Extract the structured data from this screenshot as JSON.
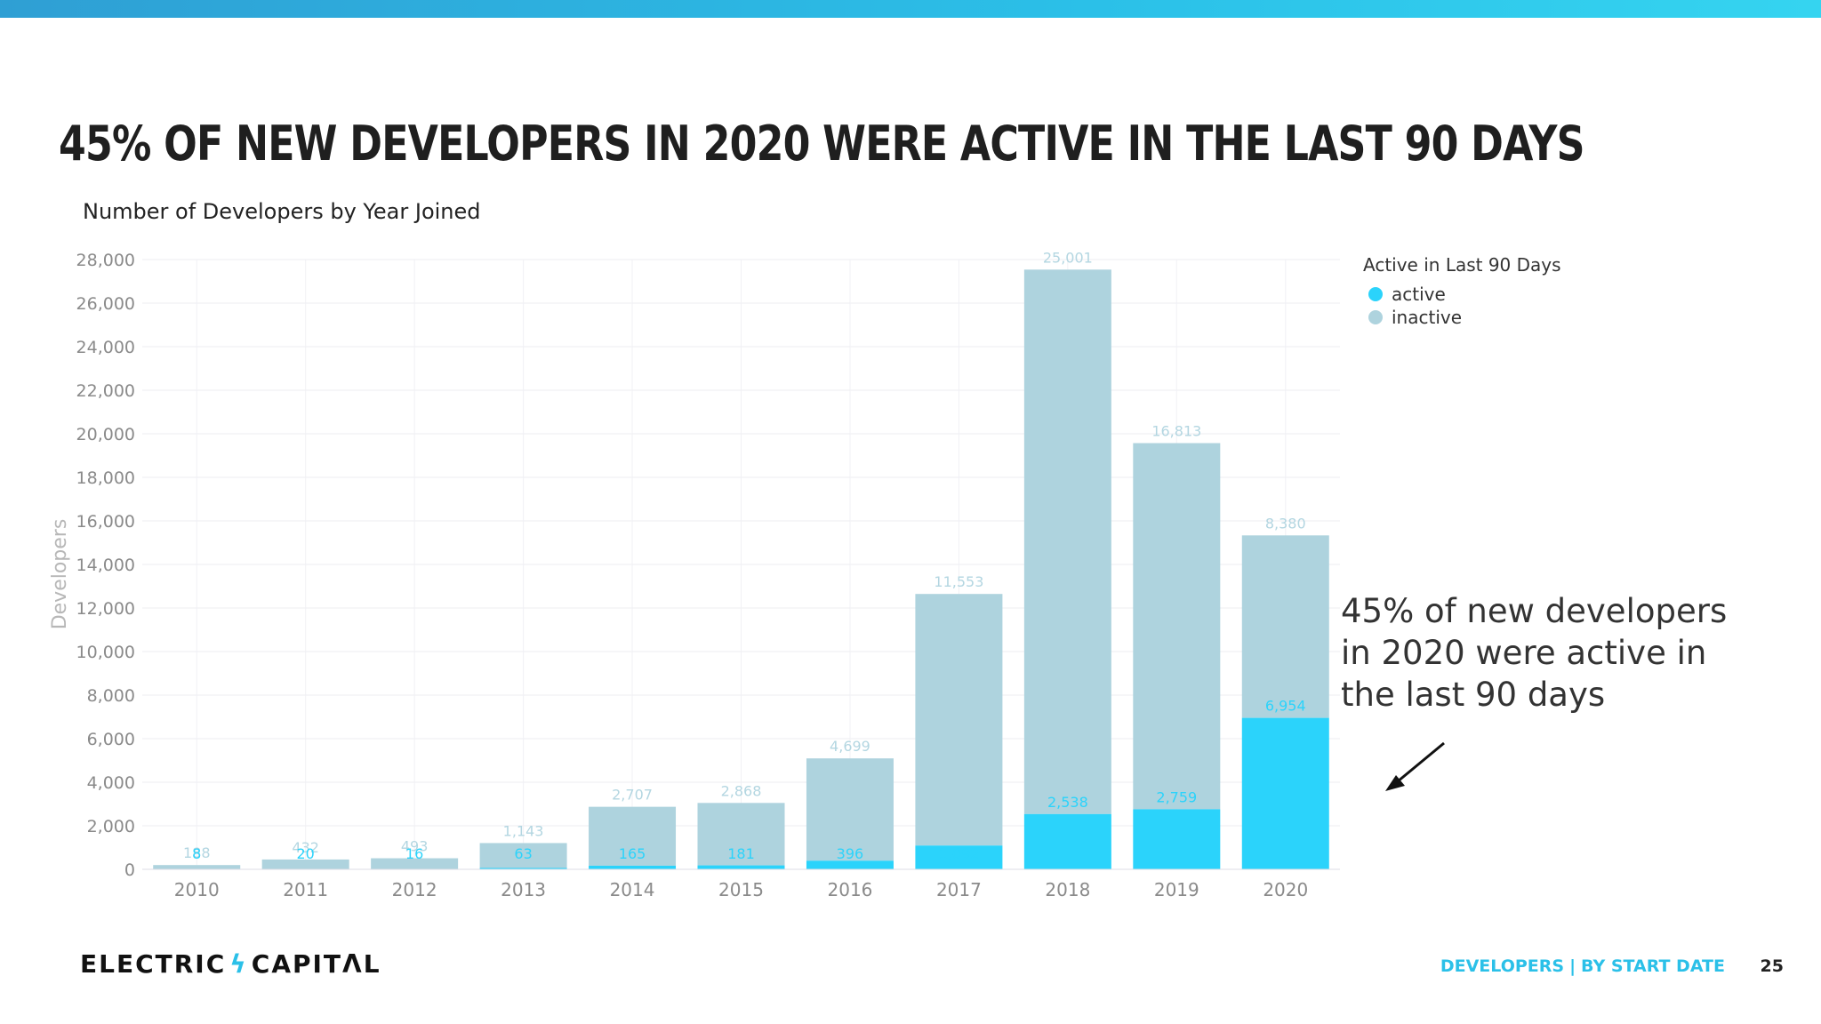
{
  "headline": "45% OF NEW DEVELOPERS IN 2020 WERE ACTIVE IN THE LAST 90 DAYS",
  "callout_text": "45% of new developers in 2020 were active in the last 90 days",
  "footer": {
    "logo_left": "ELECTRIC",
    "logo_bolt": "ϟ",
    "logo_right": "CAPITΛL",
    "nav_section": "DEVELOPERS",
    "nav_separator": "|",
    "nav_subsection": "BY START DATE",
    "page_number": "25"
  },
  "colors": {
    "active": "#2bd3fb",
    "inactive": "#aed3de",
    "accent": "#2bc0e8"
  },
  "chart_data": {
    "type": "bar",
    "stacked": true,
    "title": "Number of Developers by Year Joined",
    "xlabel": "",
    "ylabel": "Developers",
    "ylim": [
      0,
      28000
    ],
    "yticks": [
      0,
      2000,
      4000,
      6000,
      8000,
      10000,
      12000,
      14000,
      16000,
      18000,
      20000,
      22000,
      24000,
      26000,
      28000
    ],
    "ytick_labels": [
      "0",
      "2,000",
      "4,000",
      "6,000",
      "8,000",
      "10,000",
      "12,000",
      "14,000",
      "16,000",
      "18,000",
      "20,000",
      "22,000",
      "24,000",
      "26,000",
      "28,000"
    ],
    "categories": [
      "2010",
      "2011",
      "2012",
      "2013",
      "2014",
      "2015",
      "2016",
      "2017",
      "2018",
      "2019",
      "2020"
    ],
    "legend_title": "Active in Last 90 Days",
    "legend_position": "top-right",
    "grid": true,
    "series": [
      {
        "name": "active",
        "values": [
          8,
          20,
          16,
          63,
          165,
          181,
          396,
          1092,
          2538,
          2759,
          6954
        ],
        "labels": [
          "8",
          "20",
          "16",
          "63",
          "165",
          "181",
          "396",
          "1,092",
          "2,538",
          "2,759",
          "6,954"
        ]
      },
      {
        "name": "inactive",
        "values": [
          188,
          432,
          493,
          1143,
          2707,
          2868,
          4699,
          11553,
          25001,
          16813,
          8380
        ],
        "labels": [
          "188",
          "432",
          "493",
          "1,143",
          "2,707",
          "2,868",
          "4,699",
          "11,553",
          "25,001",
          "16,813",
          "8,380"
        ]
      }
    ]
  }
}
